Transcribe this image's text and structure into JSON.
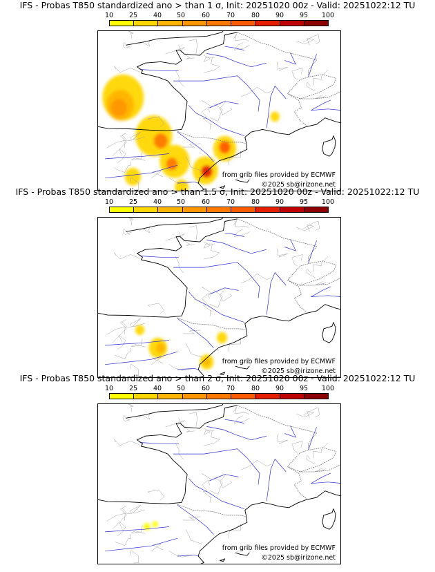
{
  "colorbar": {
    "labels": [
      "10",
      "25",
      "40",
      "50",
      "60",
      "70",
      "80",
      "90",
      "95",
      "100"
    ],
    "colors": [
      "#ffff00",
      "#ffd700",
      "#ffb400",
      "#ff9600",
      "#ff7800",
      "#ff5a00",
      "#e61e00",
      "#be0000",
      "#8c0000",
      "#500000"
    ]
  },
  "panels": [
    {
      "title": "IFS - Probas T850  standardized ano > than 1 σ, Init: 20251020 00z - Valid: 20251022:12 TU",
      "source_credit": "from grib files provided by ECMWF",
      "copyright": "©2025 sb@irizone.net",
      "blobs": [
        {
          "level": 1,
          "lon": -5.7,
          "lat": 46.0,
          "r": 1.8
        },
        {
          "level": 2,
          "lon": -5.9,
          "lat": 45.4,
          "r": 1.2
        },
        {
          "level": 3,
          "lon": -6.0,
          "lat": 45.2,
          "r": 0.7
        },
        {
          "level": 1,
          "lon": -3.5,
          "lat": 43.0,
          "r": 1.6
        },
        {
          "level": 4,
          "lon": -3.0,
          "lat": 42.6,
          "r": 0.6
        },
        {
          "level": 1,
          "lon": -2.0,
          "lat": 41.0,
          "r": 1.3
        },
        {
          "level": 4,
          "lon": -2.2,
          "lat": 40.8,
          "r": 0.5
        },
        {
          "level": 1,
          "lon": 1.6,
          "lat": 42.0,
          "r": 1.0
        },
        {
          "level": 5,
          "lon": 1.6,
          "lat": 42.1,
          "r": 0.5
        },
        {
          "level": 1,
          "lon": 0.2,
          "lat": 40.3,
          "r": 1.1
        },
        {
          "level": 6,
          "lon": 0.3,
          "lat": 40.2,
          "r": 0.5
        },
        {
          "level": 1,
          "lon": -5.0,
          "lat": 39.8,
          "r": 0.7
        },
        {
          "level": 1,
          "lon": -1.5,
          "lat": 39.0,
          "r": 0.6
        },
        {
          "level": 1,
          "lon": 5.2,
          "lat": 44.5,
          "r": 0.4
        }
      ]
    },
    {
      "title": "IFS - Probas T850  standardized ano > than 1.5 σ, Init: 20251020 00z - Valid: 20251022:12 TU",
      "source_credit": "from grib files provided by ECMWF",
      "copyright": "©2025 sb@irizone.net",
      "blobs": [
        {
          "level": 1,
          "lon": -4.5,
          "lat": 42.4,
          "r": 0.4
        },
        {
          "level": 1,
          "lon": -3.2,
          "lat": 41.0,
          "r": 0.8
        },
        {
          "level": 2,
          "lon": -3.0,
          "lat": 41.0,
          "r": 0.4
        },
        {
          "level": 1,
          "lon": 0.3,
          "lat": 39.9,
          "r": 0.6
        },
        {
          "level": 2,
          "lon": 0.3,
          "lat": 39.9,
          "r": 0.3
        },
        {
          "level": 1,
          "lon": 1.4,
          "lat": 41.8,
          "r": 0.45
        }
      ]
    },
    {
      "title": "IFS - Probas T850  standardized ano > than 2 σ, Init: 20251020 00z - Valid: 20251022:12 TU",
      "source_credit": "from grib files provided by ECMWF",
      "copyright": "©2025 sb@irizone.net",
      "blobs": [
        {
          "level": 0,
          "lon": -4.0,
          "lat": 41.6,
          "r": 0.3
        },
        {
          "level": 0,
          "lon": -3.4,
          "lat": 41.8,
          "r": 0.25
        }
      ]
    }
  ]
}
